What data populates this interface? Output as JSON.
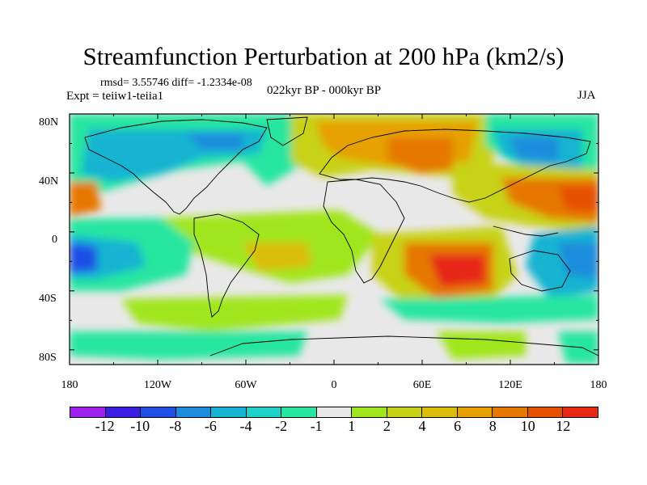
{
  "title": "Streamfunction Perturbation at 200 hPa (km2/s)",
  "stats_line": "rmsd= 3.55746 diff= -1.2334e-08",
  "experiment": "Expt = teiiw1-teiia1",
  "period": "022kyr BP - 000kyr BP",
  "season": "JJA",
  "map": {
    "lat_ticks": [
      "80N",
      "40N",
      "0",
      "40S",
      "80S"
    ],
    "lon_ticks": [
      "180",
      "120W",
      "60W",
      "0",
      "60E",
      "120E",
      "180"
    ]
  },
  "colorbar": {
    "colors": [
      "#a020f0",
      "#3c1ee6",
      "#1e50e6",
      "#1e8cdc",
      "#14b4d2",
      "#1ed2c8",
      "#28e6a0",
      "#e8e8e8",
      "#a0e61e",
      "#c8d214",
      "#dcbe0a",
      "#e6a000",
      "#e67800",
      "#e65000",
      "#e62814"
    ],
    "labels": [
      "-12",
      "-10",
      "-8",
      "-6",
      "-4",
      "-2",
      "-1",
      "1",
      "2",
      "4",
      "6",
      "8",
      "10",
      "12"
    ]
  },
  "palette": {
    "neutral": "#e8e8e8",
    "cyan": "#1ed2c8",
    "teal": "#14b4d2",
    "blue": "#1e8cdc",
    "deep_blue": "#1e50e6",
    "light_green": "#28e6a0",
    "yellow_green": "#a0e61e",
    "olive": "#c8d214",
    "gold": "#dcbe0a",
    "orange": "#e6a000",
    "dark_orange": "#e67800",
    "red_orange": "#e65000",
    "red": "#e62814"
  }
}
